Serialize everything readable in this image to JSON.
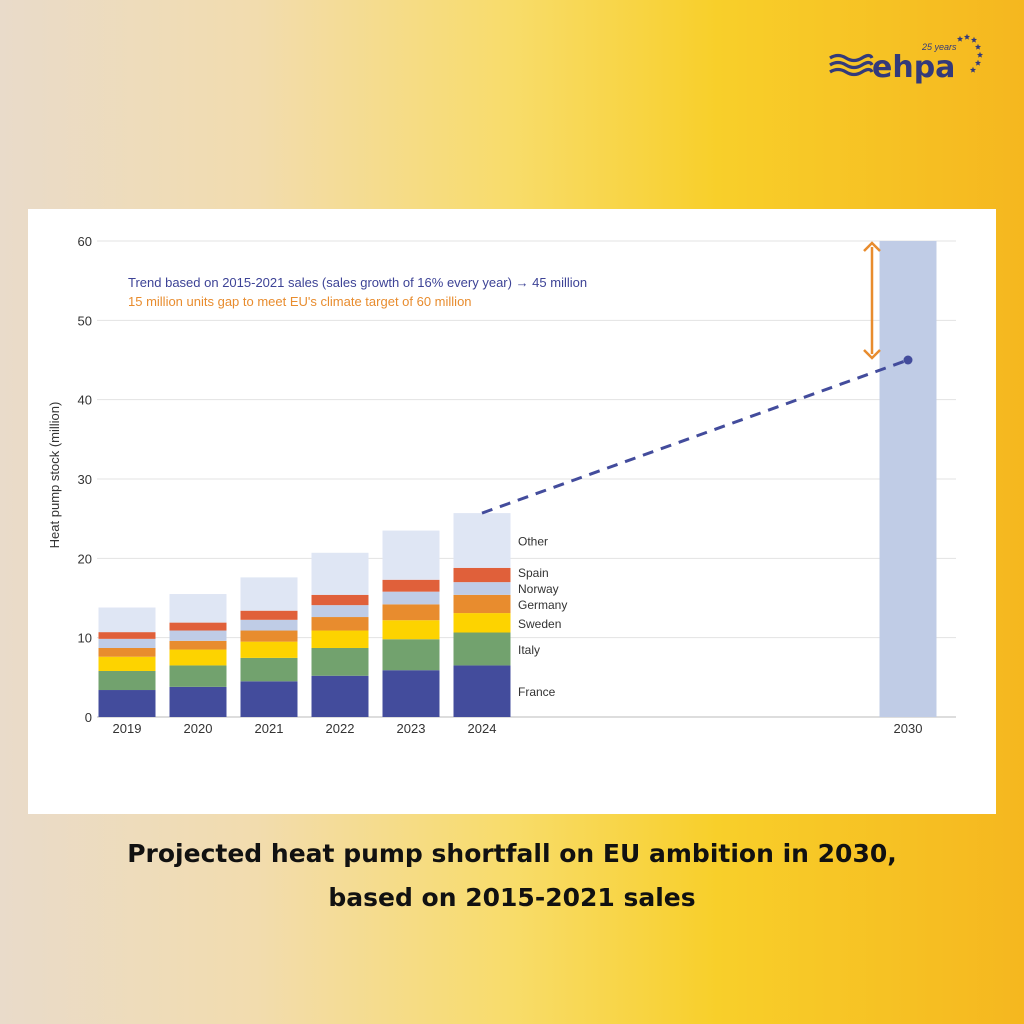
{
  "logo": {
    "text": "ehpa",
    "tagline": "25 years",
    "color": "#333a7a"
  },
  "caption": {
    "line1": "Projected heat pump shortfall on EU ambition in 2030,",
    "line2": "based on 2015-2021 sales"
  },
  "chart_data": {
    "type": "bar",
    "stacked": true,
    "title": "",
    "xlabel": "",
    "ylabel": "Heat pump stock (million)",
    "ylim": [
      0,
      60
    ],
    "yticks": [
      0,
      10,
      20,
      30,
      40,
      50,
      60
    ],
    "grid": true,
    "legend": "labels to the right of the 2024 bar",
    "categories": [
      "2019",
      "2020",
      "2021",
      "2022",
      "2023",
      "2024"
    ],
    "series": [
      {
        "name": "France",
        "color": "#434c9c",
        "values": [
          3.4,
          3.8,
          4.5,
          5.2,
          5.9,
          6.5
        ]
      },
      {
        "name": "Italy",
        "color": "#72a26e",
        "values": [
          2.4,
          2.7,
          2.95,
          3.5,
          3.9,
          4.15
        ]
      },
      {
        "name": "Sweden",
        "color": "#fdd300",
        "values": [
          1.8,
          2.0,
          2.05,
          2.2,
          2.4,
          2.45
        ]
      },
      {
        "name": "Germany",
        "color": "#e88c2e",
        "values": [
          1.1,
          1.1,
          1.4,
          1.7,
          2.0,
          2.3
        ]
      },
      {
        "name": "Norway",
        "color": "#bfcce6",
        "values": [
          1.15,
          1.3,
          1.35,
          1.5,
          1.6,
          1.6
        ]
      },
      {
        "name": "Spain",
        "color": "#e0603a",
        "values": [
          0.85,
          1.0,
          1.15,
          1.3,
          1.5,
          1.8
        ]
      },
      {
        "name": "Other",
        "color": "#dfe6f4",
        "values": [
          3.1,
          3.6,
          4.2,
          5.3,
          6.2,
          6.9
        ]
      }
    ],
    "target_bar": {
      "category": "2030",
      "value": 60,
      "color": "#c0cce6"
    },
    "trend": {
      "from": {
        "x": "2024",
        "y": 25.7
      },
      "to": {
        "x": "2030",
        "y": 45
      },
      "color": "#434c9c",
      "style": "dashed"
    },
    "gap_arrow": {
      "from": 45,
      "to": 60,
      "color": "#e88c2e"
    },
    "annotations": [
      {
        "text": "Trend based on 2015-2021 sales (sales growth of 16% every year) → 45 million",
        "color": "#3d4396"
      },
      {
        "text": "15 million units gap to meet EU's climate target of 60 million",
        "color": "#e88c2e"
      }
    ]
  }
}
